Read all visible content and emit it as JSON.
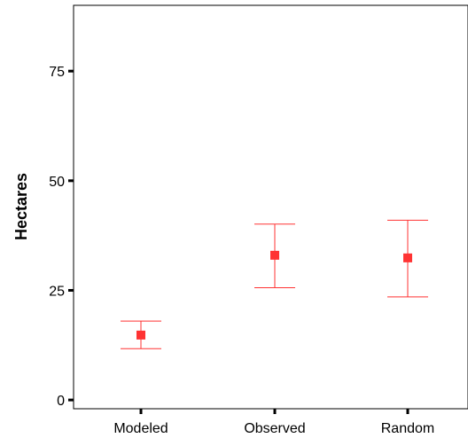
{
  "chart_data": {
    "type": "errorbar",
    "title": "",
    "xlabel": "",
    "ylabel": "Hectares",
    "categories": [
      "Modeled",
      "Observed",
      "Random"
    ],
    "values": [
      14.8,
      33.0,
      32.4
    ],
    "lower": [
      11.7,
      25.6,
      23.5
    ],
    "upper": [
      18.0,
      40.1,
      41.0
    ],
    "ylim": [
      -2,
      90
    ],
    "yticks": [
      0,
      25,
      50,
      75
    ],
    "marker": "square",
    "color": "#ff3333",
    "grid": false,
    "legend": "none"
  }
}
